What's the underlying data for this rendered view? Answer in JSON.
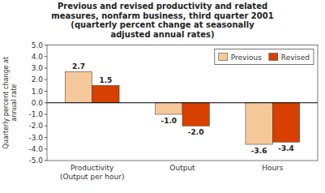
{
  "chart_data": {
    "type": "bar",
    "title": "Previous and revised productivity and related\nmeasures, nonfarm business, third quarter 2001\n(quarterly percent change at seasonally\nadjusted annual rates)",
    "categories": [
      "Productivity\n(Output per hour)",
      "Output",
      "Hours"
    ],
    "series": [
      {
        "name": "Previous",
        "color": "#F5C89A",
        "values": [
          2.7,
          -1.0,
          -3.6
        ],
        "value_labels": [
          "2.7",
          "-1.0",
          "-3.6"
        ]
      },
      {
        "name": "Revised",
        "color": "#D84000",
        "values": [
          1.5,
          -2.0,
          -3.4
        ],
        "value_labels": [
          "1.5",
          "-2.0",
          "-3.4"
        ]
      }
    ],
    "ylabel": "Quarterly percent change at\nannual rate",
    "ylim": [
      -5.0,
      5.0
    ],
    "yticks": [
      {
        "value": -5.0,
        "label": "-5.0"
      },
      {
        "value": -4.0,
        "label": "-4.0"
      },
      {
        "value": -3.0,
        "label": "-3.0"
      },
      {
        "value": -2.0,
        "label": "-2.0"
      },
      {
        "value": -1.0,
        "label": "-1.0"
      },
      {
        "value": 0.0,
        "label": "0.0"
      },
      {
        "value": 1.0,
        "label": "1.0"
      },
      {
        "value": 2.0,
        "label": "2.0"
      },
      {
        "value": 3.0,
        "label": "3.0"
      },
      {
        "value": 4.0,
        "label": "4.0"
      },
      {
        "value": 5.0,
        "label": "5.0"
      }
    ],
    "grid": false,
    "legend": "upper right",
    "data_labels": true
  }
}
